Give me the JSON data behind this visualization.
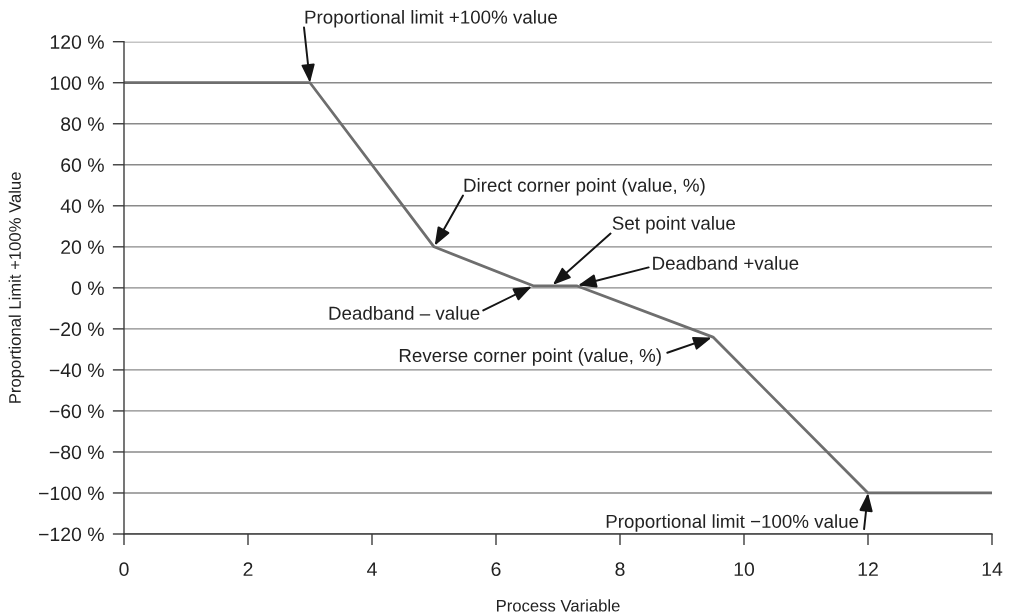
{
  "chart_data": {
    "type": "line",
    "xlabel": "Process Variable",
    "ylabel": "Proportional Limit +100% Value",
    "x": [
      0,
      3,
      5,
      6.6,
      7.3,
      9.5,
      12,
      14
    ],
    "values": [
      100,
      100,
      20,
      1,
      1,
      -24,
      -100,
      -100
    ],
    "color": "#6e6e6e",
    "line_style": "solid",
    "xlim": [
      0,
      14
    ],
    "xticks": [
      0,
      2,
      4,
      6,
      8,
      10,
      12,
      14
    ],
    "ylim": [
      -120,
      120
    ],
    "yticks": [
      {
        "value": -120,
        "label": "−120 %"
      },
      {
        "value": -100,
        "label": "−100 %"
      },
      {
        "value": -80,
        "label": "−80 %"
      },
      {
        "value": -60,
        "label": "−60 %"
      },
      {
        "value": -40,
        "label": "−40 %"
      },
      {
        "value": -20,
        "label": "−20 %"
      },
      {
        "value": 0,
        "label": "0 %"
      },
      {
        "value": 20,
        "label": "20 %"
      },
      {
        "value": 40,
        "label": "40 %"
      },
      {
        "value": 60,
        "label": "60 %"
      },
      {
        "value": 80,
        "label": "80 %"
      },
      {
        "value": 100,
        "label": "100 %"
      },
      {
        "value": 120,
        "label": "120 %"
      }
    ],
    "grid": "y",
    "annotations": [
      {
        "text": "Proportional limit +100% value",
        "x": 3,
        "y": 100
      },
      {
        "text": "Direct corner point (value, %)",
        "x": 5,
        "y": 20
      },
      {
        "text": "Set point value",
        "x": 6.9,
        "y": 1
      },
      {
        "text": "Deadband +value",
        "x": 7.3,
        "y": 1
      },
      {
        "text": "Deadband – value",
        "x": 6.6,
        "y": 1
      },
      {
        "text": "Reverse corner point (value, %)",
        "x": 9.5,
        "y": -24
      },
      {
        "text": "Proportional limit −100% value",
        "x": 12,
        "y": -100
      }
    ]
  }
}
